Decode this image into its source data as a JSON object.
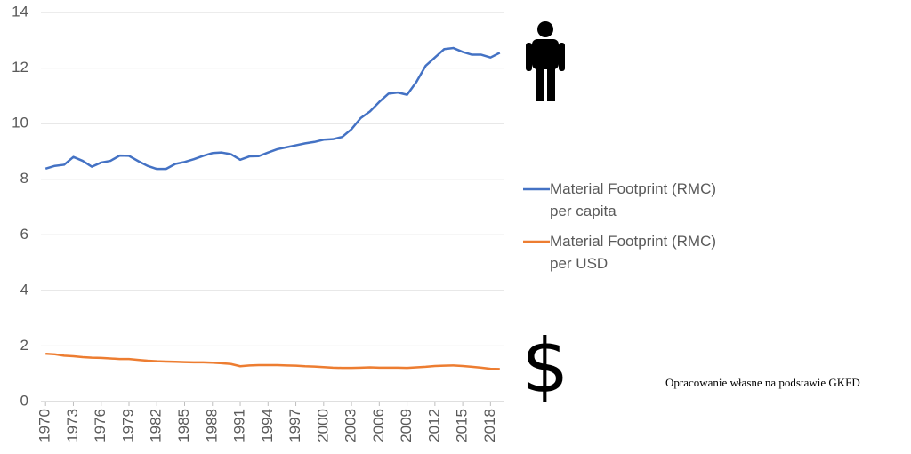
{
  "chart_data": {
    "type": "line",
    "x": [
      1970,
      1971,
      1972,
      1973,
      1974,
      1975,
      1976,
      1977,
      1978,
      1979,
      1980,
      1981,
      1982,
      1983,
      1984,
      1985,
      1986,
      1987,
      1988,
      1989,
      1990,
      1991,
      1992,
      1993,
      1994,
      1995,
      1996,
      1997,
      1998,
      1999,
      2000,
      2001,
      2002,
      2003,
      2004,
      2005,
      2006,
      2007,
      2008,
      2009,
      2010,
      2011,
      2012,
      2013,
      2014,
      2015,
      2016,
      2017,
      2018,
      2019
    ],
    "series": [
      {
        "name": "Material Footprint (RMC)\nper capita",
        "color": "#4472c4",
        "values": [
          8.38,
          8.48,
          8.52,
          8.8,
          8.66,
          8.45,
          8.6,
          8.66,
          8.85,
          8.84,
          8.65,
          8.48,
          8.37,
          8.37,
          8.55,
          8.62,
          8.72,
          8.84,
          8.94,
          8.96,
          8.9,
          8.7,
          8.82,
          8.83,
          8.96,
          9.08,
          9.15,
          9.22,
          9.29,
          9.34,
          9.42,
          9.44,
          9.52,
          9.8,
          10.2,
          10.44,
          10.78,
          11.08,
          11.12,
          11.04,
          11.5,
          12.08,
          12.38,
          12.68,
          12.72,
          12.58,
          12.48,
          12.48,
          12.38,
          12.55
        ]
      },
      {
        "name": "Material Footprint (RMC)\nper USD",
        "color": "#ed7d31",
        "values": [
          1.72,
          1.7,
          1.65,
          1.63,
          1.6,
          1.58,
          1.57,
          1.55,
          1.53,
          1.53,
          1.5,
          1.47,
          1.45,
          1.44,
          1.43,
          1.42,
          1.41,
          1.41,
          1.4,
          1.38,
          1.35,
          1.27,
          1.3,
          1.31,
          1.31,
          1.31,
          1.3,
          1.29,
          1.27,
          1.26,
          1.24,
          1.22,
          1.21,
          1.21,
          1.22,
          1.23,
          1.22,
          1.22,
          1.22,
          1.21,
          1.23,
          1.25,
          1.28,
          1.29,
          1.3,
          1.28,
          1.25,
          1.22,
          1.18,
          1.17
        ]
      }
    ],
    "xlim": [
      1969.5,
      2019.5
    ],
    "xticks": [
      1970,
      1973,
      1976,
      1979,
      1982,
      1985,
      1988,
      1991,
      1994,
      1997,
      2000,
      2003,
      2006,
      2009,
      2012,
      2015,
      2018
    ],
    "ylim": [
      0,
      14
    ],
    "yticks": [
      0,
      2,
      4,
      6,
      8,
      10,
      12,
      14
    ],
    "grid": true,
    "legend": "right",
    "dollar_icon": "$",
    "source": "Opracowanie własne na podstawie GKFD"
  }
}
